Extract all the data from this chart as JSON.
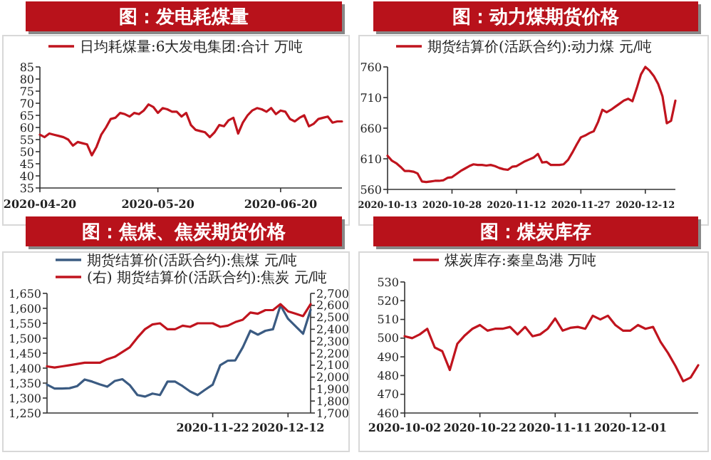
{
  "chart_data": [
    {
      "type": "line",
      "title": "图：发电耗煤量",
      "legend": "top",
      "ylim": [
        35,
        85
      ],
      "yticks": [
        35,
        40,
        45,
        50,
        55,
        60,
        65,
        70,
        75,
        80,
        85
      ],
      "categories": [
        "2020-04-20",
        null,
        null,
        null,
        null,
        null,
        null,
        null,
        null,
        null,
        null,
        null,
        null,
        null,
        null,
        null,
        null,
        null,
        null,
        null,
        null,
        null,
        null,
        null,
        null,
        "2020-05-20",
        null,
        null,
        null,
        null,
        null,
        null,
        null,
        null,
        null,
        null,
        null,
        null,
        null,
        null,
        null,
        null,
        null,
        null,
        null,
        null,
        null,
        null,
        null,
        null,
        null,
        "2020-06-20",
        null,
        null,
        null,
        null,
        null,
        null,
        null,
        null,
        null,
        null,
        null,
        null,
        null
      ],
      "series": [
        {
          "name": "日均耗煤量:6大发电集团:合计 万吨",
          "color": "#c0141e",
          "values": [
            57,
            56,
            57.5,
            57,
            56.5,
            56,
            55,
            52.5,
            54,
            53.5,
            53,
            48.5,
            52,
            57,
            60,
            63.5,
            64,
            66,
            65.5,
            64.5,
            66,
            65.5,
            67,
            69.5,
            68.5,
            66,
            68,
            67.5,
            66.5,
            66.5,
            64.5,
            66,
            61,
            59,
            58.5,
            58,
            56,
            58,
            61,
            60.5,
            63,
            64,
            57.5,
            62,
            65,
            67,
            68,
            67.5,
            66.5,
            68,
            65.5,
            67,
            66.5,
            63.5,
            62.5,
            64,
            65,
            60.5,
            61.5,
            63.5,
            64,
            64.5,
            62,
            62.5,
            62.5
          ]
        }
      ]
    },
    {
      "type": "line",
      "title": "图：动力煤期货价格",
      "legend": "top",
      "ylim": [
        560,
        760
      ],
      "yticks": [
        560,
        610,
        660,
        710,
        760
      ],
      "categories": [
        "2020-10-13",
        null,
        null,
        null,
        null,
        null,
        null,
        null,
        null,
        null,
        null,
        null,
        null,
        null,
        null,
        "2020-10-28",
        null,
        null,
        null,
        null,
        null,
        null,
        null,
        null,
        null,
        null,
        null,
        null,
        null,
        null,
        "2020-11-12",
        null,
        null,
        null,
        null,
        null,
        null,
        null,
        null,
        null,
        null,
        null,
        null,
        null,
        null,
        "2020-11-27",
        null,
        null,
        null,
        null,
        null,
        null,
        null,
        null,
        null,
        null,
        null,
        null,
        null,
        null,
        "2020-12-12",
        null,
        null,
        null,
        null,
        null,
        null,
        null
      ],
      "series": [
        {
          "name": "期货结算价(活跃合约):动力煤 元/吨",
          "color": "#c0141e",
          "values": [
            615,
            607,
            603,
            597,
            590,
            590,
            589,
            586,
            573,
            572,
            573,
            574,
            574,
            575,
            579,
            580,
            585,
            590,
            594,
            598,
            601,
            600,
            600,
            599,
            600,
            598,
            595,
            593,
            592,
            597,
            598,
            602,
            606,
            609,
            612,
            618,
            604,
            605,
            600,
            600,
            600,
            601,
            608,
            620,
            633,
            645,
            648,
            652,
            655,
            670,
            690,
            686,
            690,
            695,
            700,
            705,
            708,
            704,
            725,
            748,
            760,
            754,
            745,
            732,
            712,
            668,
            672,
            705
          ]
        }
      ]
    },
    {
      "type": "line",
      "title": "图：焦煤、焦炭期货价格",
      "legend": "top",
      "ylim": [
        1250,
        1650
      ],
      "yticks": [
        {
          "value": 1250,
          "label": "1,250"
        },
        {
          "value": 1300,
          "label": "1,300"
        },
        {
          "value": 1350,
          "label": "1,350"
        },
        {
          "value": 1400,
          "label": "1,400"
        },
        {
          "value": 1450,
          "label": "1,450"
        },
        {
          "value": 1500,
          "label": "1,500"
        },
        {
          "value": 1550,
          "label": "1,550"
        },
        {
          "value": 1600,
          "label": "1,600"
        },
        {
          "value": 1650,
          "label": "1,650"
        }
      ],
      "y2lim": [
        1700,
        2700
      ],
      "y2ticks": [
        {
          "value": 1700,
          "label": "1,700"
        },
        {
          "value": 1800,
          "label": "1,800"
        },
        {
          "value": 1900,
          "label": "1,900"
        },
        {
          "value": 2000,
          "label": "2,000"
        },
        {
          "value": 2100,
          "label": "2,100"
        },
        {
          "value": 2200,
          "label": "2,200"
        },
        {
          "value": 2300,
          "label": "2,300"
        },
        {
          "value": 2400,
          "label": "2,400"
        },
        {
          "value": 2500,
          "label": "2,500"
        },
        {
          "value": 2600,
          "label": "2,600"
        },
        {
          "value": 2700,
          "label": "2,700"
        }
      ],
      "categories": [
        null,
        null,
        null,
        null,
        null,
        null,
        null,
        null,
        null,
        null,
        null,
        null,
        null,
        null,
        null,
        null,
        null,
        null,
        null,
        null,
        null,
        null,
        "2020-11-22",
        null,
        null,
        null,
        null,
        null,
        null,
        null,
        null,
        null,
        "2020-12-12",
        null,
        null,
        null
      ],
      "series": [
        {
          "name": "期货结算价(活跃合约):焦煤 元/吨",
          "color": "#3b5b82",
          "values": [
            1345,
            1332,
            1332,
            1333,
            1340,
            1362,
            1355,
            1346,
            1338,
            1357,
            1363,
            1343,
            1310,
            1305,
            1315,
            1310,
            1355,
            1355,
            1340,
            1322,
            1310,
            1328,
            1345,
            1410,
            1425,
            1426,
            1470,
            1525,
            1512,
            1525,
            1530,
            1610,
            1565,
            1540,
            1515,
            1595
          ]
        },
        {
          "name": "(右) 期货结算价(活跃合约):焦炭 元/吨",
          "color": "#c0141e",
          "axis": "y2",
          "values": [
            2090,
            2080,
            2090,
            2100,
            2110,
            2120,
            2120,
            2120,
            2150,
            2170,
            2210,
            2250,
            2330,
            2400,
            2440,
            2450,
            2400,
            2400,
            2430,
            2420,
            2450,
            2450,
            2450,
            2420,
            2430,
            2460,
            2480,
            2540,
            2530,
            2560,
            2560,
            2610,
            2550,
            2530,
            2510,
            2610
          ]
        }
      ]
    },
    {
      "type": "line",
      "title": "图：煤炭库存",
      "legend": "top",
      "ylim": [
        460,
        530
      ],
      "yticks": [
        460,
        470,
        480,
        490,
        500,
        510,
        520,
        530
      ],
      "categories": [
        "2020-10-02",
        null,
        null,
        null,
        null,
        null,
        null,
        null,
        null,
        null,
        "2020-10-22",
        null,
        null,
        null,
        null,
        null,
        null,
        null,
        null,
        null,
        "2020-11-11",
        null,
        null,
        null,
        null,
        null,
        null,
        null,
        null,
        null,
        "2020-12-01",
        null,
        null,
        null,
        null,
        null,
        null,
        null,
        null,
        null
      ],
      "series": [
        {
          "name": "煤炭库存:秦皇岛港 万吨",
          "color": "#c0141e",
          "values": [
            501,
            500,
            502,
            505,
            495,
            493,
            483,
            497,
            501.5,
            505,
            507,
            504,
            505,
            505,
            506,
            502,
            506,
            501,
            502,
            505,
            510.5,
            504,
            505.5,
            506,
            505,
            512,
            510,
            512,
            507,
            504,
            504,
            507,
            505,
            506,
            498,
            492,
            485,
            477,
            479,
            485.5
          ]
        }
      ]
    }
  ]
}
